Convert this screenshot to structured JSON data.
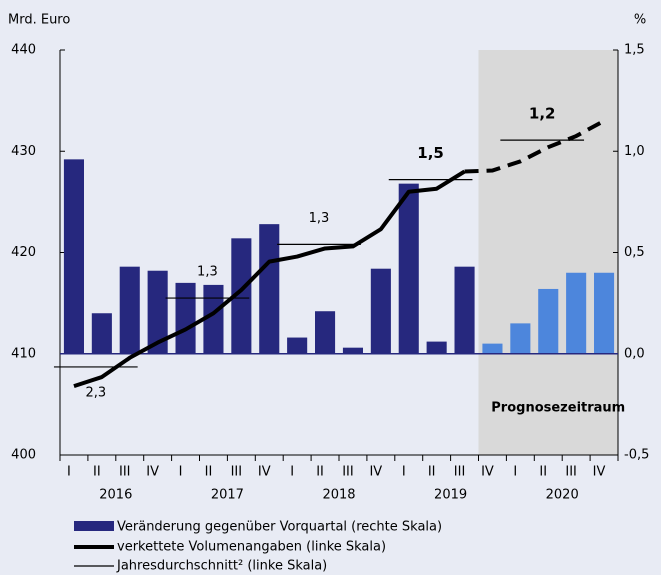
{
  "chart_data": {
    "type": "bar_line",
    "y_label": "Mrd. Euro",
    "y2_label": "%",
    "categories": [
      "I",
      "II",
      "III",
      "IV",
      "I",
      "II",
      "III",
      "IV",
      "I",
      "II",
      "III",
      "IV",
      "I",
      "II",
      "III",
      "IV",
      "I",
      "II",
      "III",
      "IV"
    ],
    "years": [
      "2016",
      "2017",
      "2018",
      "2019",
      "2020"
    ],
    "ylim": [
      400,
      440
    ],
    "yticks": [
      400,
      410,
      420,
      430,
      440
    ],
    "y2lim": [
      -0.5,
      1.5
    ],
    "y2ticks": [
      {
        "value": -0.5,
        "label": "-0,5"
      },
      {
        "value": 0,
        "label": "0,0"
      },
      {
        "value": 0.5,
        "label": "0,5"
      },
      {
        "value": 1,
        "label": "1,0"
      },
      {
        "value": 1.5,
        "label": "1,5"
      }
    ],
    "forecast_from": 15,
    "forecast_label": "Prognosezeitraum",
    "series": [
      {
        "name": "Veränderung gegenüber Vorquartal (rechte Skala)",
        "type": "bar",
        "axis": "y2",
        "color": "#26287e",
        "forecast_color": "#4d86dc",
        "values": [
          0.96,
          0.2,
          0.43,
          0.41,
          0.35,
          0.34,
          0.57,
          0.64,
          0.08,
          0.21,
          0.03,
          0.42,
          0.84,
          0.06,
          0.43,
          0.05,
          0.15,
          0.32,
          0.4,
          0.4
        ]
      },
      {
        "name": "verkettete Volumenangaben (linke Skala)",
        "type": "line",
        "color": "#000000",
        "values": [
          406.8,
          407.7,
          409.6,
          411.1,
          412.4,
          414.0,
          416.3,
          419.1,
          419.6,
          420.4,
          420.6,
          422.3,
          426.0,
          426.3,
          428.0,
          428.1,
          429.0,
          430.4,
          431.5,
          433.0
        ]
      }
    ],
    "annual_average": {
      "name": "Jahresdurchschnitt² (linke Skala)",
      "color": "#000000",
      "values": [
        408.7,
        415.5,
        420.8,
        427.2,
        431.1
      ],
      "labels": [
        "2,3",
        "1,3",
        "1,3",
        "1,5",
        "1,2"
      ],
      "label_bold": [
        false,
        false,
        false,
        true,
        true
      ],
      "label_position": [
        "below",
        "above",
        "above",
        "above",
        "above"
      ]
    }
  }
}
